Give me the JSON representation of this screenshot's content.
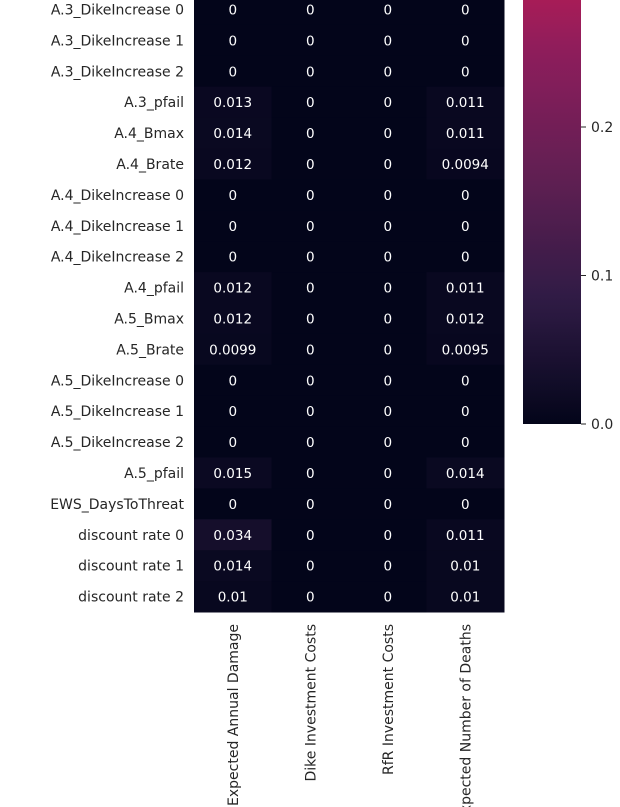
{
  "chart_data": {
    "type": "heatmap",
    "title": "",
    "xlabel": "",
    "ylabel": "",
    "rows": [
      "A.3_DikeIncrease 0",
      "A.3_DikeIncrease 1",
      "A.3_DikeIncrease 2",
      "A.3_pfail",
      "A.4_Bmax",
      "A.4_Brate",
      "A.4_DikeIncrease 0",
      "A.4_DikeIncrease 1",
      "A.4_DikeIncrease 2",
      "A.4_pfail",
      "A.5_Bmax",
      "A.5_Brate",
      "A.5_DikeIncrease 0",
      "A.5_DikeIncrease 1",
      "A.5_DikeIncrease 2",
      "A.5_pfail",
      "EWS_DaysToThreat",
      "discount rate 0",
      "discount rate 1",
      "discount rate 2"
    ],
    "columns": [
      "Expected Annual Damage",
      "Dike Investment Costs",
      "RfR Investment Costs",
      "Expected Number of Deaths"
    ],
    "values": [
      [
        0,
        0,
        0,
        0
      ],
      [
        0,
        0,
        0,
        0
      ],
      [
        0,
        0,
        0,
        0
      ],
      [
        0.013,
        0,
        0,
        0.011
      ],
      [
        0.014,
        0,
        0,
        0.011
      ],
      [
        0.012,
        0,
        0,
        0.0094
      ],
      [
        0,
        0,
        0,
        0
      ],
      [
        0,
        0,
        0,
        0
      ],
      [
        0,
        0,
        0,
        0
      ],
      [
        0.012,
        0,
        0,
        0.011
      ],
      [
        0.012,
        0,
        0,
        0.012
      ],
      [
        0.0099,
        0,
        0,
        0.0095
      ],
      [
        0,
        0,
        0,
        0
      ],
      [
        0,
        0,
        0,
        0
      ],
      [
        0,
        0,
        0,
        0
      ],
      [
        0.015,
        0,
        0,
        0.014
      ],
      [
        0,
        0,
        0,
        0
      ],
      [
        0.034,
        0,
        0,
        0.011
      ],
      [
        0.014,
        0,
        0,
        0.01
      ],
      [
        0.01,
        0,
        0,
        0.01
      ]
    ],
    "cell_labels": [
      [
        "0",
        "0",
        "0",
        "0"
      ],
      [
        "0",
        "0",
        "0",
        "0"
      ],
      [
        "0",
        "0",
        "0",
        "0"
      ],
      [
        "0.013",
        "0",
        "0",
        "0.011"
      ],
      [
        "0.014",
        "0",
        "0",
        "0.011"
      ],
      [
        "0.012",
        "0",
        "0",
        "0.0094"
      ],
      [
        "0",
        "0",
        "0",
        "0"
      ],
      [
        "0",
        "0",
        "0",
        "0"
      ],
      [
        "0",
        "0",
        "0",
        "0"
      ],
      [
        "0.012",
        "0",
        "0",
        "0.011"
      ],
      [
        "0.012",
        "0",
        "0",
        "0.012"
      ],
      [
        "0.0099",
        "0",
        "0",
        "0.0095"
      ],
      [
        "0",
        "0",
        "0",
        "0"
      ],
      [
        "0",
        "0",
        "0",
        "0"
      ],
      [
        "0",
        "0",
        "0",
        "0"
      ],
      [
        "0.015",
        "0",
        "0",
        "0.014"
      ],
      [
        "0",
        "0",
        "0",
        "0"
      ],
      [
        "0.034",
        "0",
        "0",
        "0.011"
      ],
      [
        "0.014",
        "0",
        "0",
        "0.01"
      ],
      [
        "0.01",
        "0",
        "0",
        "0.01"
      ]
    ],
    "colorbar": {
      "ticks": [
        0.0,
        0.1,
        0.2
      ],
      "tick_labels": [
        "0.0",
        "0.1",
        "0.2"
      ],
      "visible_range": [
        0,
        0.29
      ],
      "colormap": "rocket",
      "colormap_stops": [
        "#03051a",
        "#2f1b45",
        "#611f53",
        "#8e1d5c",
        "#cb1b4f"
      ]
    },
    "annotation_color": "#ffffff"
  }
}
